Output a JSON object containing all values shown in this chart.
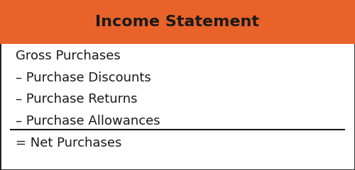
{
  "title": "Income Statement",
  "title_bg_color": "#E8622A",
  "title_text_color": "#1a1a1a",
  "title_fontsize": 16,
  "body_bg_color": "#ffffff",
  "border_color": "#1a1a1a",
  "lines": [
    {
      "text": "Gross Purchases",
      "prefix": "",
      "underline": false,
      "fontsize": 13
    },
    {
      "text": "Purchase Discounts",
      "prefix": "– ",
      "underline": false,
      "fontsize": 13
    },
    {
      "text": "Purchase Returns",
      "prefix": "– ",
      "underline": false,
      "fontsize": 13
    },
    {
      "text": "Purchase Allowances",
      "prefix": "– ",
      "underline": true,
      "fontsize": 13
    },
    {
      "text": "Net Purchases",
      "prefix": "= ",
      "underline": false,
      "fontsize": 13
    }
  ],
  "figsize": [
    5.0,
    2.4
  ],
  "dpi": 100
}
